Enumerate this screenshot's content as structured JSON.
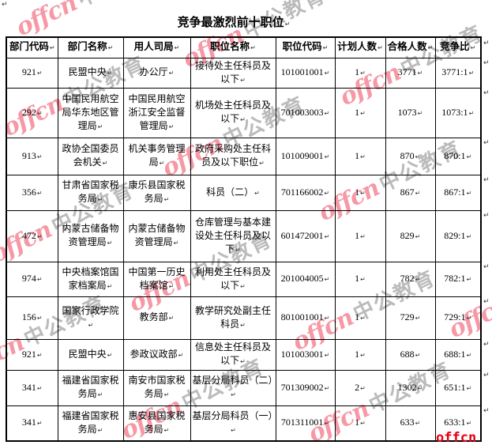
{
  "document": {
    "title": "竞争最激烈前十职位",
    "paragraph_mark": "↵"
  },
  "watermark": {
    "brand_latin": "offcn",
    "brand_chinese": "中公教育",
    "latin_color": "#f0455c",
    "chinese_color": "#8f8f8f",
    "corner_logo_text": "offcn",
    "corner_logo_color": "#e60012"
  },
  "table": {
    "headers": [
      "部门代码",
      "部门名称",
      "用人司局",
      "职位名称",
      "职位代码",
      "计划人数",
      "合格人数",
      "竞争比"
    ],
    "rows": [
      [
        "921",
        "民盟中央",
        "办公厅",
        "接待处主任科员及以下",
        "101001001",
        "1",
        "3771",
        "3771:1"
      ],
      [
        "292",
        "中国民用航空局华东地区管理局",
        "中国民用航空浙江安全监督管理局",
        "机场处主任科员及以下",
        "701003003",
        "1",
        "1073",
        "1073:1"
      ],
      [
        "913",
        "政协全国委员会机关",
        "机关事务管理局",
        "政府采购处主任科员及以下职位",
        "101009001",
        "1",
        "870",
        "870:1"
      ],
      [
        "356",
        "甘肃省国家税务局",
        "康乐县国家税务局",
        "科员（二）",
        "701166002",
        "1",
        "867",
        "867:1"
      ],
      [
        "472",
        "内蒙古储备物资管理局",
        "内蒙古储备物资管理局",
        "仓库管理与基本建设处主任科员及以下",
        "601472001",
        "1",
        "829",
        "829:1"
      ],
      [
        "974",
        "中央档案馆国家档案局",
        "中国第一历史档案馆",
        "利用处主任科员及以下",
        "201004005",
        "1",
        "782",
        "782:1"
      ],
      [
        "156",
        "国家行政学院",
        "教务部",
        "教学研究处副主任科员",
        "801001001",
        "1",
        "729",
        "729:1"
      ],
      [
        "921",
        "民盟中央",
        "参政议政部",
        "信息处主任科员及以下",
        "101003001",
        "1",
        "688",
        "688:1"
      ],
      [
        "341",
        "福建省国家税务局",
        "南安市国家税务局",
        "基层分局科员（二）",
        "701309002",
        "2",
        "1302",
        "651:1"
      ],
      [
        "341",
        "福建省国家税务局",
        "惠安县国家税务局",
        "基层分局科员（一）",
        "701311001",
        "1",
        "633",
        "633:1"
      ]
    ]
  }
}
